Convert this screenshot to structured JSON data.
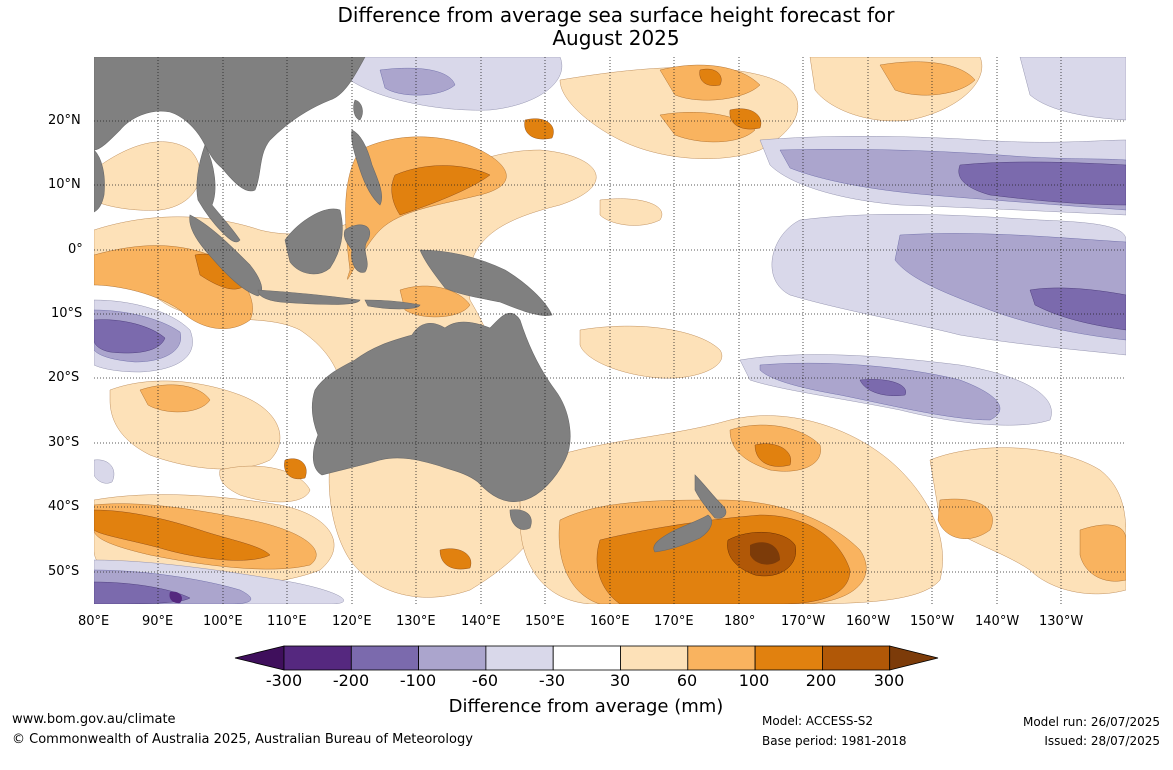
{
  "title": {
    "line1": "Difference from average sea surface height forecast for",
    "line2": "August 2025"
  },
  "map": {
    "land_color": "#808080",
    "graticule": "dotted",
    "lon_labels": [
      "80°E",
      "90°E",
      "100°E",
      "110°E",
      "120°E",
      "130°E",
      "140°E",
      "150°E",
      "160°E",
      "170°E",
      "180°",
      "170°W",
      "160°W",
      "150°W",
      "140°W",
      "130°W"
    ],
    "lat_labels": [
      "20°N",
      "10°N",
      "0°",
      "10°S",
      "20°S",
      "30°S",
      "40°S",
      "50°S"
    ]
  },
  "colorbar": {
    "title": "Difference from average (mm)",
    "tick_labels": [
      "-300",
      "-200",
      "-100",
      "-60",
      "-30",
      "30",
      "60",
      "100",
      "200",
      "300"
    ],
    "colors": [
      "#3f0f5c",
      "#55287f",
      "#7b6aad",
      "#aba5cd",
      "#d9d8ea",
      "#ffffff",
      "#fde1b8",
      "#f9b35f",
      "#e1810f",
      "#b15807",
      "#7c3b09"
    ]
  },
  "footer": {
    "website": "www.bom.gov.au/climate",
    "copyright": "© Commonwealth of Australia 2025, Australian Bureau of Meteorology",
    "model": "Model: ACCESS-S2",
    "base_period": "Base period: 1981-2018",
    "model_run": "Model run: 26/07/2025",
    "issued": "Issued: 28/07/2025"
  }
}
